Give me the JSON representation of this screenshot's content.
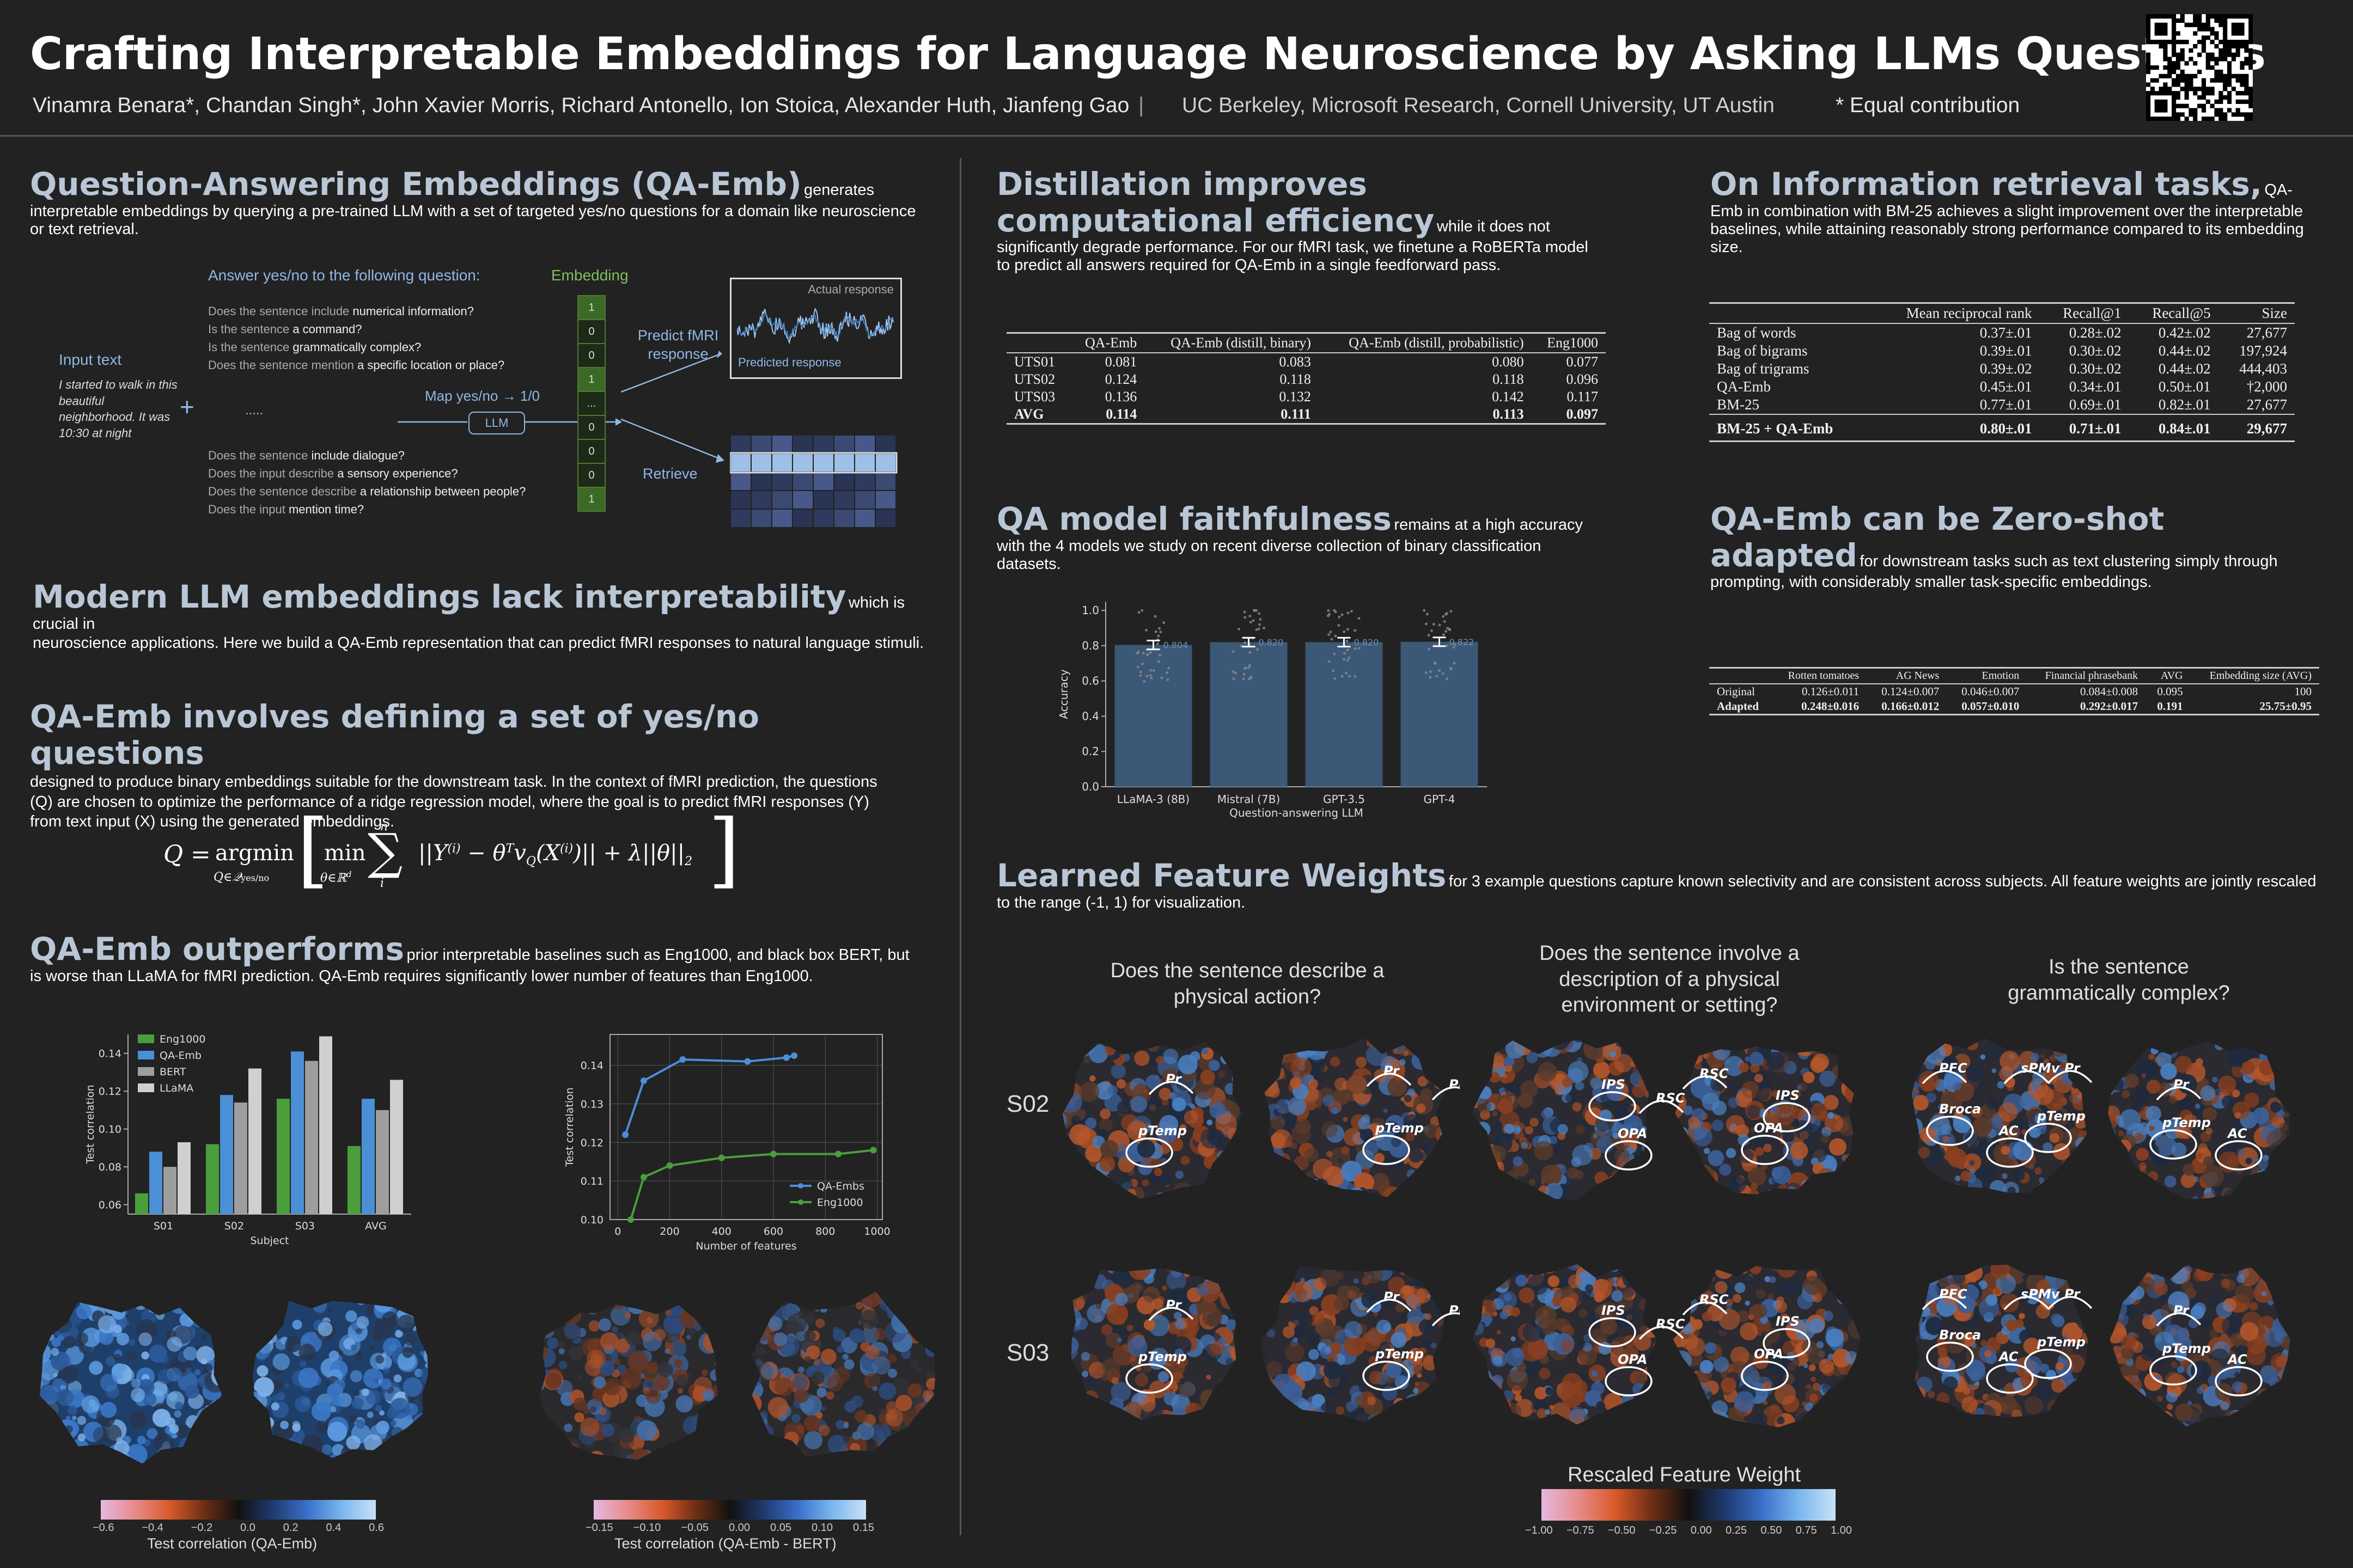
{
  "header": {
    "title": "Crafting Interpretable Embeddings for Language Neuroscience by Asking LLMs Questions",
    "authors": "Vinamra Benara*, Chandan Singh*, John Xavier Morris, Richard Antonello, Ion Stoica, Alexander Huth, Jianfeng Gao",
    "separator": "|",
    "affiliations": "UC Berkeley, Microsoft Research, Cornell University, UT Austin",
    "equal_contribution": "* Equal contribution"
  },
  "qaemb": {
    "title": "Question-Answering Embeddings (QA-Emb)",
    "text": "generates interpretable embeddings by querying a pre-trained LLM with a set of targeted yes/no questions for a domain like neuroscience or text retrieval.",
    "diagram": {
      "answer_prompt": "Answer yes/no to the following question:",
      "embedding_label": "Embedding",
      "input_label": "Input text",
      "input_text": "I started to walk in this beautiful neighborhood. It was 10:30 at night",
      "plus": "+",
      "questions_top": [
        {
          "pre": "Does the sentence include ",
          "post": "numerical information?"
        },
        {
          "pre": "Is the sentence ",
          "post": "a command?"
        },
        {
          "pre": "Is the sentence ",
          "post": "grammatically complex?"
        },
        {
          "pre": "Does the sentence mention ",
          "post": "a specific location or place?"
        }
      ],
      "ellipsis": ".....",
      "questions_bottom": [
        {
          "pre": "Does the sentence ",
          "post": "include dialogue?"
        },
        {
          "pre": "Does the input describe ",
          "post": "a sensory experience?"
        },
        {
          "pre": "Does the sentence describe ",
          "post": "a relationship between people?"
        },
        {
          "pre": "Does the input ",
          "post": "mention time?"
        }
      ],
      "map_label": "Map yes/no → 1/0",
      "llm_label": "LLM",
      "embedding_values": [
        "1",
        "0",
        "0",
        "1",
        "...",
        "0",
        "0",
        "0",
        "1"
      ],
      "predict_label": "Predict fMRI response",
      "actual_response": "Actual response",
      "predicted_response": "Predicted response",
      "retrieve_label": "Retrieve"
    }
  },
  "modern": {
    "title": "Modern LLM embeddings lack interpretability",
    "text_inline": "which is crucial in",
    "text_rest": "neuroscience applications.  Here we build a QA-Emb representation that can predict fMRI responses to natural language stimuli."
  },
  "defining": {
    "title": "QA-Emb involves defining a set of yes/no questions",
    "text": "designed to produce binary embeddings suitable for the downstream task. In the context of fMRI prediction, the questions (Q) are chosen to optimize the performance of a ridge regression model, where the goal is to predict fMRI responses (Y) from text input (X) using the generated embeddings."
  },
  "outperforms": {
    "title": "QA-Emb outperforms",
    "text": "prior interpretable baselines such as Eng1000, and black box BERT, but is worse than LLaMA for fMRI prediction. QA-Emb requires significantly lower number of features than Eng1000.",
    "colorbar1": {
      "label": "Test correlation (QA-Emb)",
      "ticks": [
        "−0.6",
        "−0.4",
        "−0.2",
        "0.0",
        "0.2",
        "0.4",
        "0.6"
      ]
    },
    "colorbar2": {
      "label": "Test correlation (QA-Emb - BERT)",
      "ticks": [
        "−0.15",
        "−0.10",
        "−0.05",
        "0.00",
        "0.05",
        "0.10",
        "0.15"
      ]
    }
  },
  "chart_data": [
    {
      "type": "bar",
      "categories": [
        "S01",
        "S02",
        "S03",
        "AVG"
      ],
      "series": [
        {
          "name": "Eng1000",
          "values": [
            0.066,
            0.092,
            0.116,
            0.091
          ]
        },
        {
          "name": "QA-Emb",
          "values": [
            0.088,
            0.118,
            0.141,
            0.116
          ]
        },
        {
          "name": "BERT",
          "values": [
            0.08,
            0.114,
            0.136,
            0.11
          ]
        },
        {
          "name": "LLaMA",
          "values": [
            0.093,
            0.132,
            0.149,
            0.126
          ]
        }
      ],
      "xlabel": "Subject",
      "ylabel": "Test correlation",
      "ylim": [
        0.055,
        0.15
      ],
      "yticks": [
        "0.06",
        "0.08",
        "0.10",
        "0.12",
        "0.14"
      ],
      "legend": "top-left",
      "colors": [
        "#4a9e3c",
        "#4b8fd6",
        "#9e9e9e",
        "#d0d0d0"
      ]
    },
    {
      "type": "line",
      "series": [
        {
          "name": "QA-Embs",
          "x": [
            29,
            100,
            250,
            500,
            650,
            680
          ],
          "y": [
            0.122,
            0.136,
            0.1415,
            0.141,
            0.142,
            0.1425
          ]
        },
        {
          "name": "Eng1000",
          "x": [
            50,
            100,
            200,
            400,
            600,
            850,
            985
          ],
          "y": [
            0.1,
            0.111,
            0.114,
            0.116,
            0.117,
            0.117,
            0.118
          ]
        }
      ],
      "xlabel": "Number of features",
      "ylabel": "Test correlation",
      "xlim": [
        -30,
        1020
      ],
      "ylim": [
        0.1,
        0.148
      ],
      "xticks": [
        "0",
        "200",
        "400",
        "600",
        "800",
        "1000"
      ],
      "yticks": [
        "0.10",
        "0.11",
        "0.12",
        "0.13",
        "0.14"
      ],
      "grid": true,
      "legend": "bottom-right",
      "colors": [
        "#4b8fd6",
        "#4a9e3c"
      ]
    },
    {
      "type": "bar",
      "categories": [
        "LLaMA-3 (8B)",
        "Mistral (7B)",
        "GPT-3.5",
        "GPT-4"
      ],
      "values": [
        0.804,
        0.82,
        0.82,
        0.822
      ],
      "data_labels": [
        "0.804",
        "0.820",
        "0.820",
        "0.822"
      ],
      "xlabel": "Question-answering LLM",
      "ylabel": "Accuracy",
      "ylim": [
        0.0,
        1.05
      ],
      "yticks": [
        "0.0",
        "0.2",
        "0.4",
        "0.6",
        "0.8",
        "1.0"
      ],
      "colors": [
        "#3b5877"
      ]
    }
  ],
  "distill": {
    "title": "Distillation improves computational efficiency",
    "text": "while it does not significantly degrade performance. For our fMRI task, we finetune a RoBERTa model to predict all answers required for QA-Emb in a single feedforward pass.",
    "table": {
      "headers": [
        "",
        "QA-Emb",
        "QA-Emb (distill, binary)",
        "QA-Emb (distill, probabilistic)",
        "Eng1000"
      ],
      "rows": [
        [
          "UTS01",
          "0.081",
          "0.083",
          "0.080",
          "0.077"
        ],
        [
          "UTS02",
          "0.124",
          "0.118",
          "0.118",
          "0.096"
        ],
        [
          "UTS03",
          "0.136",
          "0.132",
          "0.142",
          "0.117"
        ],
        [
          "AVG",
          "0.114",
          "0.111",
          "0.113",
          "0.097"
        ]
      ]
    }
  },
  "faith": {
    "title": "QA model faithfulness",
    "text": "remains at a high accuracy with the 4 models we study on recent diverse collection of binary classification datasets."
  },
  "ir": {
    "title": "On Information retrieval tasks,",
    "text": "QA-Emb in combination with BM-25 achieves a slight improvement over the interpretable baselines, while attaining reasonably strong performance compared to its embedding size.",
    "table": {
      "headers": [
        "",
        "Mean reciprocal rank",
        "Recall@1",
        "Recall@5",
        "Size"
      ],
      "rows": [
        [
          "Bag of words",
          "0.37±.01",
          "0.28±.02",
          "0.42±.02",
          "27,677"
        ],
        [
          "Bag of bigrams",
          "0.39±.01",
          "0.30±.02",
          "0.44±.02",
          "197,924"
        ],
        [
          "Bag of trigrams",
          "0.39±.02",
          "0.30±.02",
          "0.44±.02",
          "444,403"
        ],
        [
          "QA-Emb",
          "0.45±.01",
          "0.34±.01",
          "0.50±.01",
          "†2,000"
        ],
        [
          "BM-25",
          "0.77±.01",
          "0.69±.01",
          "0.82±.01",
          "27,677"
        ]
      ],
      "total": [
        "BM-25 + QA-Emb",
        "0.80±.01",
        "0.71±.01",
        "0.84±.01",
        "29,677"
      ]
    }
  },
  "zeroshot": {
    "title": "QA-Emb can be Zero-shot adapted",
    "text": "for downstream tasks such as text clustering simply through prompting, with considerably smaller task-specific embeddings.",
    "table": {
      "headers": [
        "",
        "Rotten tomatoes",
        "AG News",
        "Emotion",
        "Financial phrasebank",
        "AVG",
        "Embedding size (AVG)"
      ],
      "rows": [
        [
          "Original",
          "0.126±0.011",
          "0.124±0.007",
          "0.046±0.007",
          "0.084±0.008",
          "0.095",
          "100"
        ],
        [
          "Adapted",
          "0.248±0.016",
          "0.166±0.012",
          "0.057±0.010",
          "0.292±0.017",
          "0.191",
          "25.75±0.95"
        ]
      ]
    }
  },
  "features": {
    "title": "Learned Feature Weights",
    "text": "for 3 example questions capture known selectivity and are consistent across subjects. All feature weights are jointly rescaled to the range (-1, 1) for visualization.",
    "questions": [
      "Does the sentence describe a physical action?",
      "Does the sentence involve a description of a physical environment or setting?",
      "Is the sentence grammatically complex?"
    ],
    "subjects": [
      "S02",
      "S03"
    ],
    "roi_sets": [
      [
        "Pr",
        "pTemp",
        "Pr",
        "pTemp",
        "PFC"
      ],
      [
        "IPS",
        "RSC",
        "OPA",
        "RSC",
        "IPS",
        "OPA"
      ],
      [
        "PFC",
        "sPMv",
        "Pr",
        "Broca",
        "pTemp",
        "AC",
        "Pr",
        "pTemp",
        "AC"
      ]
    ],
    "colorbar": {
      "label": "Rescaled Feature Weight",
      "ticks": [
        "−1.00",
        "−0.75",
        "−0.50",
        "−0.25",
        "0.00",
        "0.25",
        "0.50",
        "0.75",
        "1.00"
      ]
    }
  }
}
